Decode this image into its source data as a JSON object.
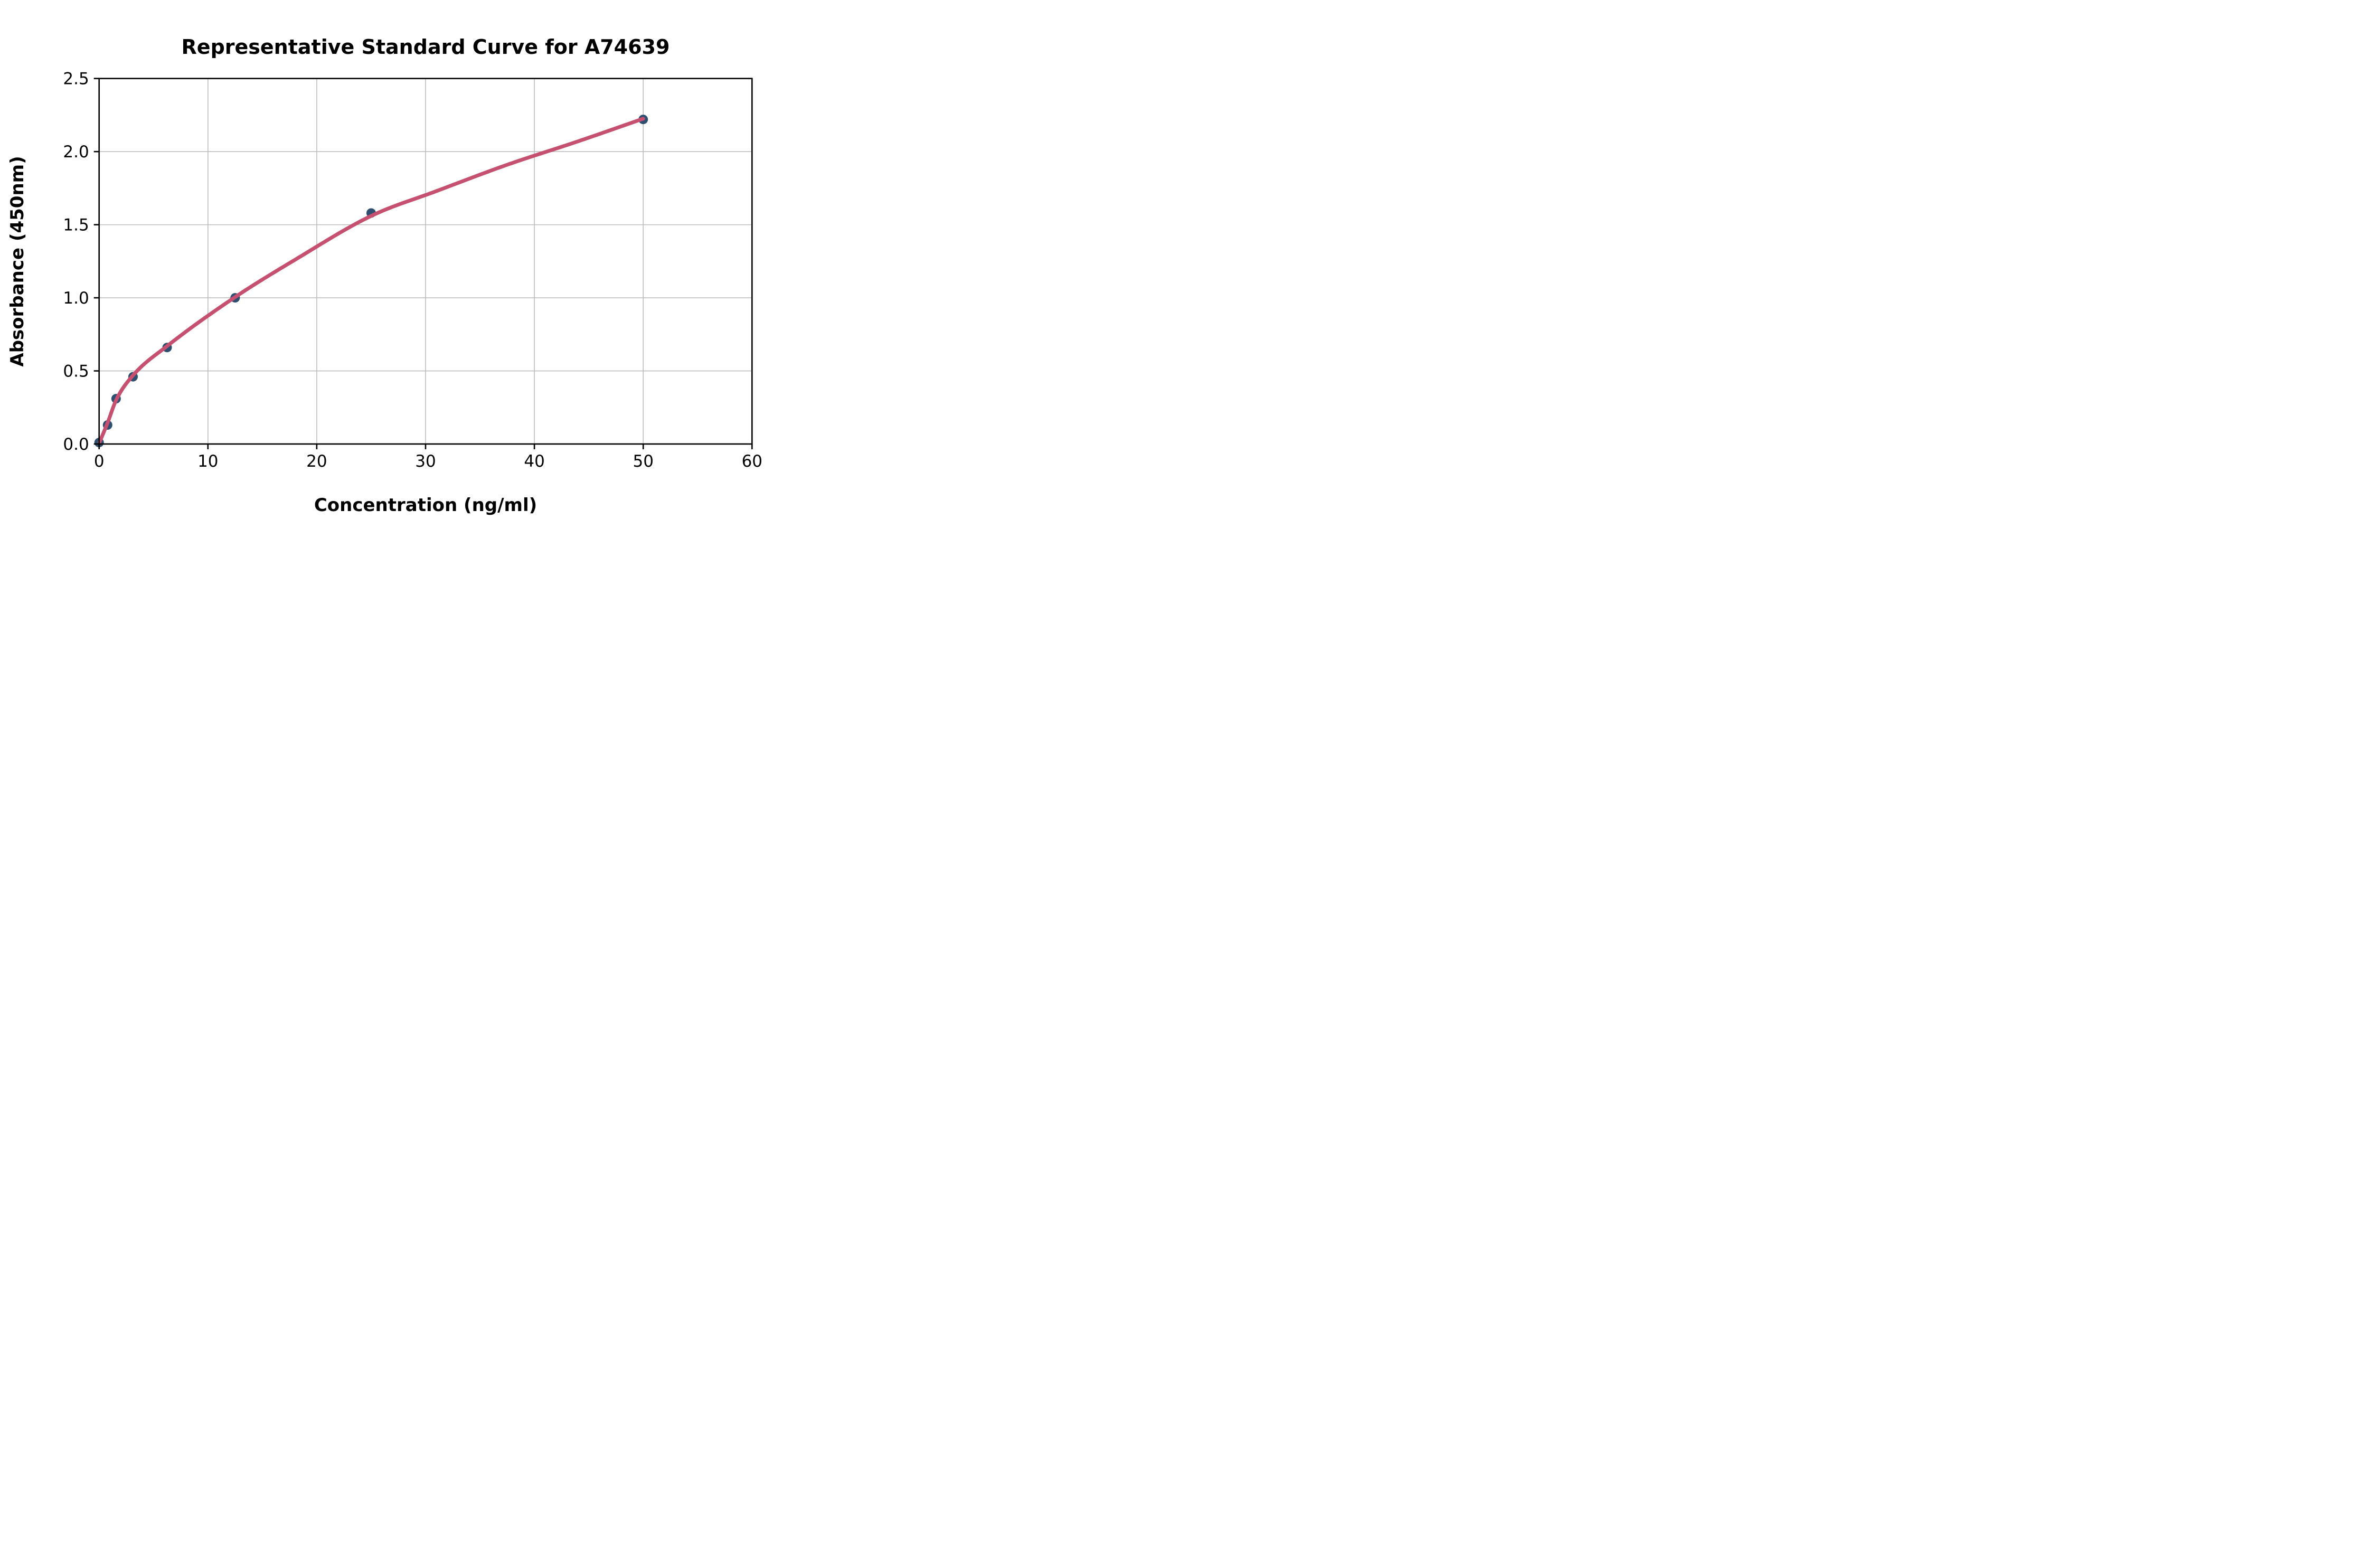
{
  "chart_data": {
    "type": "scatter",
    "title": "Representative Standard Curve for A74639",
    "xlabel": "Concentration (ng/ml)",
    "ylabel": "Absorbance (450nm)",
    "xlim": [
      0,
      60
    ],
    "ylim": [
      0,
      2.5
    ],
    "x_ticks": [
      0,
      10,
      20,
      30,
      40,
      50,
      60
    ],
    "x_tick_labels": [
      "0",
      "10",
      "20",
      "30",
      "40",
      "50",
      "60"
    ],
    "y_ticks": [
      0.0,
      0.5,
      1.0,
      1.5,
      2.0,
      2.5
    ],
    "y_tick_labels": [
      "0.0",
      "0.5",
      "1.0",
      "1.5",
      "2.0",
      "2.5"
    ],
    "grid": true,
    "legend": "none",
    "series": [
      {
        "name": "standard-points",
        "type": "scatter",
        "color": "#2e4f70",
        "x": [
          0,
          0.78,
          1.56,
          3.12,
          6.25,
          12.5,
          25,
          50
        ],
        "y": [
          0.01,
          0.13,
          0.31,
          0.46,
          0.66,
          1.0,
          1.58,
          2.22
        ]
      },
      {
        "name": "fitted-curve",
        "type": "line",
        "color": "#c5506f",
        "x": [
          0,
          0.78,
          1.56,
          3.12,
          6.25,
          12.5,
          18,
          25,
          31,
          37.5,
          44,
          50
        ],
        "y": [
          0.005,
          0.145,
          0.3,
          0.47,
          0.67,
          1.005,
          1.26,
          1.56,
          1.73,
          1.91,
          2.07,
          2.225
        ]
      }
    ],
    "colors": {
      "marker": "#2e4f70",
      "curve": "#c5506f",
      "grid": "#bdbdbd",
      "spine": "#000000",
      "text": "#000000",
      "background": "#ffffff"
    }
  }
}
